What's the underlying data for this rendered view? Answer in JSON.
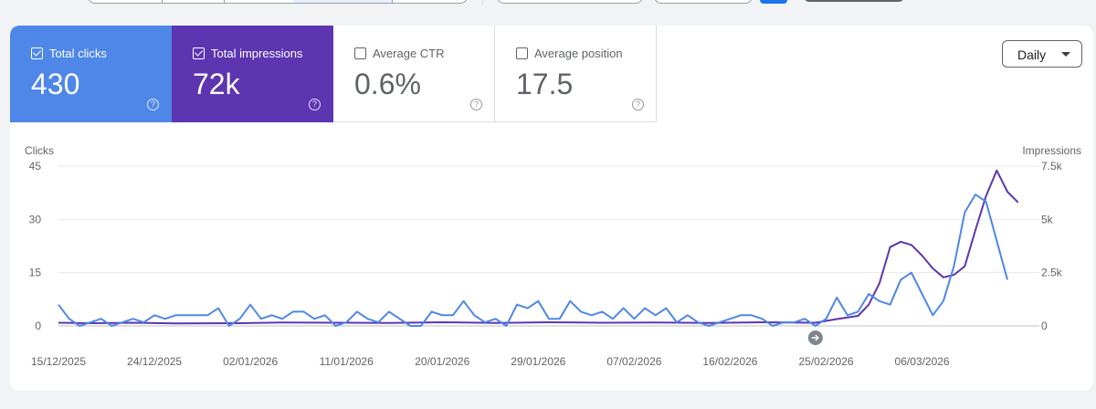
{
  "metrics": [
    {
      "label": "Total clicks",
      "value": "430",
      "checked": true
    },
    {
      "label": "Total impressions",
      "value": "72k",
      "checked": true
    },
    {
      "label": "Average CTR",
      "value": "0.6%",
      "checked": false
    },
    {
      "label": "Average position",
      "value": "17.5",
      "checked": false
    }
  ],
  "granularity": {
    "selected": "Daily"
  },
  "colors": {
    "clicks": "#4e87e8",
    "impressions": "#5d35b1"
  },
  "chart_data": {
    "type": "line",
    "y_left_label": "Clicks",
    "y_right_label": "Impressions",
    "y_left_ticks": [
      "45",
      "30",
      "15",
      "0"
    ],
    "y_right_ticks": [
      "7.5k",
      "5k",
      "2.5k",
      "0"
    ],
    "y_left_range": [
      0,
      45
    ],
    "y_right_range": [
      0,
      7500
    ],
    "x_range": [
      "2025-12-15",
      "2026-03-17"
    ],
    "x_tick_labels": [
      "15/12/2025",
      "24/12/2025",
      "02/01/2026",
      "11/01/2026",
      "20/01/2026",
      "29/01/2026",
      "07/02/2026",
      "16/02/2026",
      "25/02/2026",
      "06/03/2026"
    ],
    "annotation_date": "2026-02-24",
    "series": [
      {
        "name": "Clicks",
        "axis": "left",
        "points": [
          [
            "2025-12-15",
            6
          ],
          [
            "2025-12-16",
            2
          ],
          [
            "2025-12-17",
            0
          ],
          [
            "2025-12-18",
            1
          ],
          [
            "2025-12-19",
            2
          ],
          [
            "2025-12-20",
            0
          ],
          [
            "2025-12-21",
            1
          ],
          [
            "2025-12-22",
            2
          ],
          [
            "2025-12-23",
            1
          ],
          [
            "2025-12-24",
            3
          ],
          [
            "2025-12-25",
            2
          ],
          [
            "2025-12-26",
            3
          ],
          [
            "2025-12-27",
            3
          ],
          [
            "2025-12-28",
            3
          ],
          [
            "2025-12-29",
            3
          ],
          [
            "2025-12-30",
            5
          ],
          [
            "2025-12-31",
            0
          ],
          [
            "2026-01-01",
            2
          ],
          [
            "2026-01-02",
            6
          ],
          [
            "2026-01-03",
            2
          ],
          [
            "2026-01-04",
            3
          ],
          [
            "2026-01-05",
            2
          ],
          [
            "2026-01-06",
            4
          ],
          [
            "2026-01-07",
            4
          ],
          [
            "2026-01-08",
            2
          ],
          [
            "2026-01-09",
            3
          ],
          [
            "2026-01-10",
            0
          ],
          [
            "2026-01-11",
            1
          ],
          [
            "2026-01-12",
            4
          ],
          [
            "2026-01-13",
            2
          ],
          [
            "2026-01-14",
            1
          ],
          [
            "2026-01-15",
            4
          ],
          [
            "2026-01-16",
            2
          ],
          [
            "2026-01-17",
            0
          ],
          [
            "2026-01-18",
            0
          ],
          [
            "2026-01-19",
            4
          ],
          [
            "2026-01-20",
            3
          ],
          [
            "2026-01-21",
            3
          ],
          [
            "2026-01-22",
            7
          ],
          [
            "2026-01-23",
            3
          ],
          [
            "2026-01-24",
            1
          ],
          [
            "2026-01-25",
            2
          ],
          [
            "2026-01-26",
            0
          ],
          [
            "2026-01-27",
            6
          ],
          [
            "2026-01-28",
            5
          ],
          [
            "2026-01-29",
            7
          ],
          [
            "2026-01-30",
            2
          ],
          [
            "2026-01-31",
            2
          ],
          [
            "2026-02-01",
            7
          ],
          [
            "2026-02-02",
            4
          ],
          [
            "2026-02-03",
            3
          ],
          [
            "2026-02-04",
            4
          ],
          [
            "2026-02-05",
            2
          ],
          [
            "2026-02-06",
            5
          ],
          [
            "2026-02-07",
            2
          ],
          [
            "2026-02-08",
            5
          ],
          [
            "2026-02-09",
            3
          ],
          [
            "2026-02-10",
            5
          ],
          [
            "2026-02-11",
            1
          ],
          [
            "2026-02-12",
            3
          ],
          [
            "2026-02-13",
            1
          ],
          [
            "2026-02-14",
            0
          ],
          [
            "2026-02-15",
            1
          ],
          [
            "2026-02-16",
            2
          ],
          [
            "2026-02-17",
            3
          ],
          [
            "2026-02-18",
            3
          ],
          [
            "2026-02-19",
            2
          ],
          [
            "2026-02-20",
            0
          ],
          [
            "2026-02-21",
            1
          ],
          [
            "2026-02-22",
            1
          ],
          [
            "2026-02-23",
            2
          ],
          [
            "2026-02-24",
            0
          ],
          [
            "2026-02-25",
            2
          ],
          [
            "2026-02-26",
            8
          ],
          [
            "2026-02-27",
            3
          ],
          [
            "2026-02-28",
            4
          ],
          [
            "2026-03-01",
            9
          ],
          [
            "2026-03-02",
            7
          ],
          [
            "2026-03-03",
            6
          ],
          [
            "2026-03-04",
            13
          ],
          [
            "2026-03-05",
            15
          ],
          [
            "2026-03-06",
            9
          ],
          [
            "2026-03-07",
            3
          ],
          [
            "2026-03-08",
            7
          ],
          [
            "2026-03-09",
            17
          ],
          [
            "2026-03-10",
            32
          ],
          [
            "2026-03-11",
            37
          ],
          [
            "2026-03-12",
            35
          ],
          [
            "2026-03-13",
            24
          ],
          [
            "2026-03-14",
            13
          ]
        ]
      },
      {
        "name": "Impressions",
        "axis": "right",
        "points": [
          [
            "2025-12-15",
            150
          ],
          [
            "2025-12-18",
            130
          ],
          [
            "2025-12-22",
            150
          ],
          [
            "2025-12-26",
            120
          ],
          [
            "2026-01-01",
            130
          ],
          [
            "2026-01-05",
            160
          ],
          [
            "2026-01-10",
            150
          ],
          [
            "2026-01-15",
            140
          ],
          [
            "2026-01-20",
            170
          ],
          [
            "2026-01-25",
            140
          ],
          [
            "2026-01-30",
            170
          ],
          [
            "2026-02-04",
            150
          ],
          [
            "2026-02-09",
            160
          ],
          [
            "2026-02-14",
            140
          ],
          [
            "2026-02-19",
            170
          ],
          [
            "2026-02-24",
            150
          ],
          [
            "2026-02-26",
            320
          ],
          [
            "2026-02-28",
            470
          ],
          [
            "2026-03-01",
            1000
          ],
          [
            "2026-03-02",
            2000
          ],
          [
            "2026-03-03",
            3700
          ],
          [
            "2026-03-04",
            3950
          ],
          [
            "2026-03-05",
            3800
          ],
          [
            "2026-03-06",
            3300
          ],
          [
            "2026-03-07",
            2700
          ],
          [
            "2026-03-08",
            2280
          ],
          [
            "2026-03-09",
            2400
          ],
          [
            "2026-03-10",
            2800
          ],
          [
            "2026-03-11",
            4500
          ],
          [
            "2026-03-12",
            6100
          ],
          [
            "2026-03-13",
            7300
          ],
          [
            "2026-03-14",
            6300
          ],
          [
            "2026-03-15",
            5800
          ]
        ]
      }
    ]
  }
}
